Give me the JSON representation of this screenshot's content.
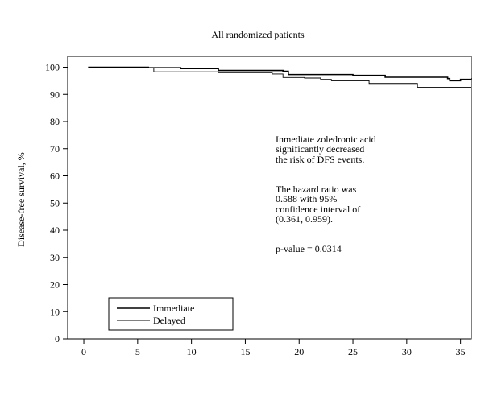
{
  "chart_data": {
    "type": "line",
    "title": "All randomized patients",
    "xlabel": "",
    "ylabel": "Disease-free survival, %",
    "xlim": [
      -1.5,
      36
    ],
    "ylim": [
      0,
      104
    ],
    "xticks": [
      0,
      5,
      10,
      15,
      20,
      25,
      30,
      35
    ],
    "yticks": [
      0,
      10,
      20,
      30,
      40,
      50,
      60,
      70,
      80,
      90,
      100
    ],
    "grid": false,
    "legend_position": "bottom-left",
    "series": [
      {
        "name": "Immediate",
        "line_weight": "thick",
        "step_points": [
          [
            0.4,
            100
          ],
          [
            6,
            99.8
          ],
          [
            9,
            99.5
          ],
          [
            12.5,
            98.8
          ],
          [
            18.5,
            98.5
          ],
          [
            19,
            97.3
          ],
          [
            25,
            97
          ],
          [
            28,
            96.3
          ],
          [
            33.8,
            95.8
          ],
          [
            34,
            95
          ],
          [
            35,
            95.5
          ],
          [
            36,
            96
          ]
        ]
      },
      {
        "name": "Delayed",
        "line_weight": "thin",
        "step_points": [
          [
            0.4,
            99.8
          ],
          [
            6.5,
            98.3
          ],
          [
            12.5,
            98
          ],
          [
            17.5,
            97.5
          ],
          [
            18.5,
            96.2
          ],
          [
            20.5,
            96
          ],
          [
            22,
            95.5
          ],
          [
            23,
            95
          ],
          [
            26.5,
            94
          ],
          [
            31,
            92.6
          ],
          [
            36,
            92.6
          ]
        ]
      }
    ],
    "annotations": [
      "Inmediate zoledronic acid\nsignificantly decreased\nthe risk of DFS events.",
      "The hazard ratio was\n0.588 with 95%\nconfidence interval of\n(0.361, 0.959).",
      "p-value = 0.0314"
    ]
  }
}
